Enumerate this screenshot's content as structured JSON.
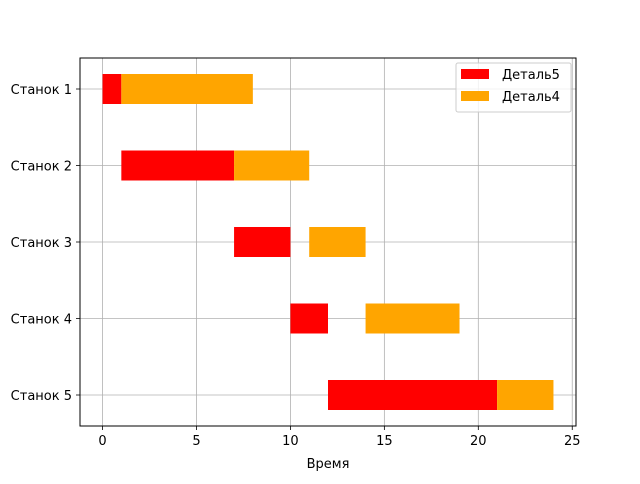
{
  "chart_data": {
    "type": "bar",
    "orientation": "horizontal-gantt",
    "title": "",
    "xlabel": "Время",
    "ylabel": "",
    "xlim": [
      -1.2,
      25.2
    ],
    "x_ticks": [
      0,
      5,
      10,
      15,
      20,
      25
    ],
    "categories": [
      "Станок 1",
      "Станок 2",
      "Станок 3",
      "Станок 4",
      "Станок 5"
    ],
    "grid": true,
    "legend_position": "top-right",
    "series": [
      {
        "name": "Деталь5",
        "color": "#ff0000",
        "tasks": [
          {
            "category": "Станок 1",
            "start": 0,
            "end": 1
          },
          {
            "category": "Станок 2",
            "start": 1,
            "end": 7
          },
          {
            "category": "Станок 3",
            "start": 7,
            "end": 10
          },
          {
            "category": "Станок 4",
            "start": 10,
            "end": 12
          },
          {
            "category": "Станок 5",
            "start": 12,
            "end": 21
          }
        ]
      },
      {
        "name": "Деталь4",
        "color": "#ffa500",
        "tasks": [
          {
            "category": "Станок 1",
            "start": 1,
            "end": 8
          },
          {
            "category": "Станок 2",
            "start": 7,
            "end": 11
          },
          {
            "category": "Станок 3",
            "start": 11,
            "end": 14
          },
          {
            "category": "Станок 4",
            "start": 14,
            "end": 19
          },
          {
            "category": "Станок 5",
            "start": 21,
            "end": 24
          }
        ]
      }
    ]
  }
}
